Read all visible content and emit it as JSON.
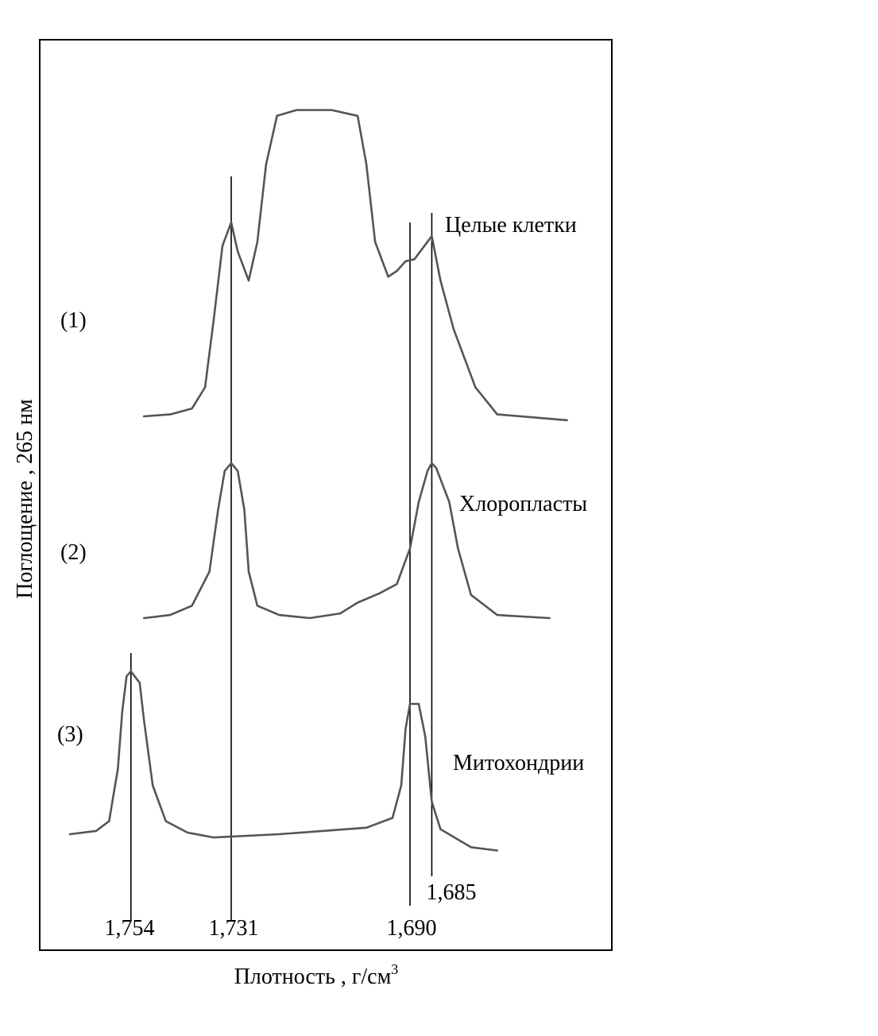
{
  "chart_data": {
    "type": "line",
    "xlabel": "Плотность , г/см",
    "xlabel_sup": "3",
    "ylabel": "Поглощение , 265 нм",
    "x_reversed": true,
    "marker_densities": [
      {
        "value": 1.754,
        "label": "1,754"
      },
      {
        "value": 1.731,
        "label": "1,731"
      },
      {
        "value": 1.69,
        "label": "1,690"
      },
      {
        "value": 1.685,
        "label": "1,685"
      }
    ],
    "series": [
      {
        "index": "(1)",
        "name": "Целые клетки",
        "points": [
          [
            1.751,
            0.0
          ],
          [
            1.745,
            0.01
          ],
          [
            1.74,
            0.04
          ],
          [
            1.737,
            0.15
          ],
          [
            1.735,
            0.5
          ],
          [
            1.733,
            0.88
          ],
          [
            1.731,
            1.0
          ],
          [
            1.7295,
            0.85
          ],
          [
            1.727,
            0.7
          ],
          [
            1.725,
            0.9
          ],
          [
            1.723,
            1.3
          ],
          [
            1.7205,
            1.55
          ],
          [
            1.716,
            1.58
          ],
          [
            1.708,
            1.58
          ],
          [
            1.702,
            1.55
          ],
          [
            1.7,
            1.3
          ],
          [
            1.698,
            0.9
          ],
          [
            1.695,
            0.72
          ],
          [
            1.693,
            0.75
          ],
          [
            1.691,
            0.8
          ],
          [
            1.689,
            0.81
          ],
          [
            1.687,
            0.87
          ],
          [
            1.685,
            0.93
          ],
          [
            1.683,
            0.7
          ],
          [
            1.68,
            0.45
          ],
          [
            1.675,
            0.15
          ],
          [
            1.67,
            0.01
          ],
          [
            1.654,
            -0.02
          ]
        ]
      },
      {
        "index": "(2)",
        "name": "Хлоропласты",
        "points": [
          [
            1.751,
            0.0
          ],
          [
            1.745,
            0.02
          ],
          [
            1.74,
            0.08
          ],
          [
            1.736,
            0.3
          ],
          [
            1.734,
            0.7
          ],
          [
            1.7325,
            0.95
          ],
          [
            1.731,
            1.0
          ],
          [
            1.7295,
            0.95
          ],
          [
            1.728,
            0.7
          ],
          [
            1.727,
            0.3
          ],
          [
            1.725,
            0.08
          ],
          [
            1.72,
            0.02
          ],
          [
            1.713,
            0.0
          ],
          [
            1.706,
            0.03
          ],
          [
            1.702,
            0.1
          ],
          [
            1.697,
            0.16
          ],
          [
            1.693,
            0.22
          ],
          [
            1.69,
            0.45
          ],
          [
            1.688,
            0.75
          ],
          [
            1.686,
            0.95
          ],
          [
            1.685,
            1.0
          ],
          [
            1.684,
            0.97
          ],
          [
            1.681,
            0.75
          ],
          [
            1.679,
            0.45
          ],
          [
            1.676,
            0.15
          ],
          [
            1.67,
            0.02
          ],
          [
            1.658,
            0.0
          ]
        ]
      },
      {
        "index": "(3)",
        "name": "Митохондрии",
        "points": [
          [
            1.768,
            0.0
          ],
          [
            1.762,
            0.02
          ],
          [
            1.759,
            0.08
          ],
          [
            1.757,
            0.4
          ],
          [
            1.756,
            0.75
          ],
          [
            1.755,
            0.97
          ],
          [
            1.754,
            1.0
          ],
          [
            1.752,
            0.93
          ],
          [
            1.751,
            0.7
          ],
          [
            1.749,
            0.3
          ],
          [
            1.746,
            0.08
          ],
          [
            1.741,
            0.01
          ],
          [
            1.735,
            -0.02
          ],
          [
            1.72,
            0.0
          ],
          [
            1.7,
            0.04
          ],
          [
            1.694,
            0.1
          ],
          [
            1.692,
            0.3
          ],
          [
            1.691,
            0.65
          ],
          [
            1.69,
            0.8
          ],
          [
            1.688,
            0.8
          ],
          [
            1.6865,
            0.6
          ],
          [
            1.685,
            0.2
          ],
          [
            1.683,
            0.03
          ],
          [
            1.676,
            -0.08
          ],
          [
            1.67,
            -0.1
          ]
        ]
      }
    ]
  }
}
